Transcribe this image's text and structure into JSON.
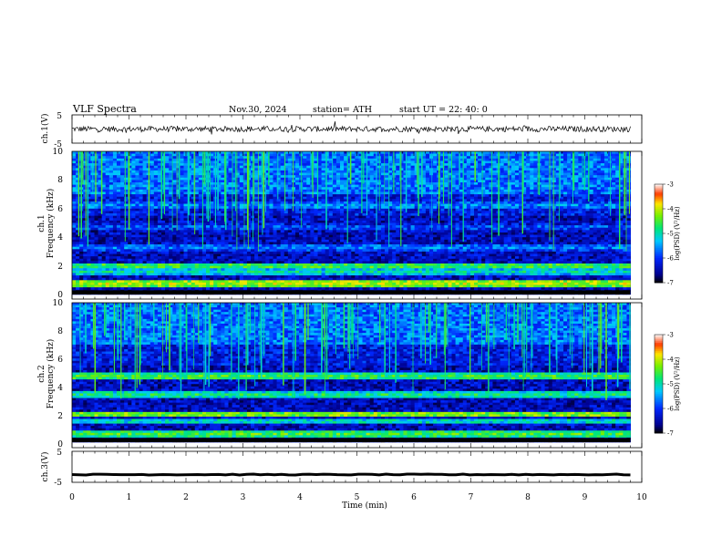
{
  "header": {
    "title": "VLF  Spectra",
    "date": "Nov.30, 2024",
    "station": "station= ATH",
    "start": "start  UT  =    22: 40: 0"
  },
  "chart_data": [
    {
      "type": "line",
      "panel": "ch1-waveform",
      "ylabel": "ch.1(V)",
      "ylim": [
        -5,
        5
      ],
      "yticks": [
        "5",
        "-5"
      ],
      "xlim": [
        0,
        10
      ],
      "baseline_v": 0,
      "noise_amplitude_v": 1.0
    },
    {
      "type": "heatmap",
      "panel": "ch1-spectrogram",
      "ylabel": [
        "ch.1",
        "Frequency  (kHz)"
      ],
      "ylim": [
        0,
        10
      ],
      "yticks": [
        "0",
        "2",
        "4",
        "6",
        "8",
        "10"
      ],
      "xlim": [
        0,
        9.8
      ],
      "colorbar": {
        "label": "log(PSD) (V²/Hz)",
        "range": [
          -7,
          -3
        ],
        "ticks": [
          "-3",
          "-4",
          "-5",
          "-6",
          "-7"
        ]
      },
      "bands_khz": [
        {
          "f": 2.0,
          "level": -4.5
        },
        {
          "f": 1.6,
          "level": -5.0
        },
        {
          "f": 0.8,
          "level": -4.0
        },
        {
          "f": 4.7,
          "level": -5.8
        },
        {
          "f": 3.3,
          "level": -5.6
        },
        {
          "f": 6.2,
          "level": -5.5
        }
      ]
    },
    {
      "type": "heatmap",
      "panel": "ch2-spectrogram",
      "ylabel": [
        "ch.2",
        "Frequency  (kHz)"
      ],
      "ylim": [
        0,
        10
      ],
      "yticks": [
        "0",
        "2",
        "4",
        "6",
        "8",
        "10"
      ],
      "xlim": [
        0,
        9.8
      ],
      "colorbar": {
        "label": "log(PSD) (V²/Hz)",
        "range": [
          -7,
          -3
        ],
        "ticks": [
          "-3",
          "-4",
          "-5",
          "-6",
          "-7"
        ]
      },
      "bands_khz": [
        {
          "f": 2.0,
          "level": -4.2
        },
        {
          "f": 4.7,
          "level": -4.5
        },
        {
          "f": 3.4,
          "level": -4.8
        },
        {
          "f": 1.5,
          "level": -5.0
        },
        {
          "f": 0.6,
          "level": -4.5
        }
      ]
    },
    {
      "type": "line",
      "panel": "ch3-waveform",
      "ylabel": "ch.3(V)",
      "ylim": [
        -5,
        5
      ],
      "yticks": [
        "5",
        "-5"
      ],
      "xlim": [
        0,
        10
      ],
      "baseline_v": -2.5,
      "noise_amplitude_v": 0.15
    }
  ],
  "x_axis": {
    "label": "Time  (min)",
    "ticks": [
      "0",
      "1",
      "2",
      "3",
      "4",
      "5",
      "6",
      "7",
      "8",
      "9",
      "10"
    ],
    "range": [
      0,
      10
    ]
  }
}
